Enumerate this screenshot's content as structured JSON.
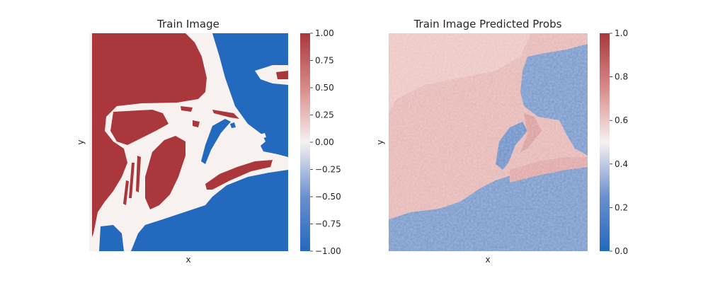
{
  "chart_data": [
    {
      "type": "heatmap",
      "title": "Train Image",
      "xlabel": "x",
      "ylabel": "y",
      "colorbar": {
        "range": [
          -1.0,
          1.0
        ],
        "colormap": "vlag",
        "ticks": [
          "1.00",
          "0.75",
          "0.50",
          "0.25",
          "0.00",
          "−0.25",
          "−0.50",
          "−0.75",
          "−1.00"
        ],
        "tick_values": [
          1.0,
          0.75,
          0.5,
          0.25,
          0.0,
          -0.25,
          -0.5,
          -0.75,
          -1.0
        ]
      },
      "values_present": [
        -1.0,
        0.0,
        1.0
      ]
    },
    {
      "type": "heatmap",
      "title": "Train Image Predicted Probs",
      "xlabel": "x",
      "ylabel": "y",
      "colorbar": {
        "range": [
          0.0,
          1.0
        ],
        "colormap": "vlag",
        "ticks": [
          "1.0",
          "0.8",
          "0.6",
          "0.4",
          "0.2",
          "0.0"
        ],
        "tick_values": [
          1.0,
          0.8,
          0.6,
          0.4,
          0.2,
          0.0
        ]
      }
    }
  ],
  "colors": {
    "red": "#a9373b",
    "white": "#f7f1f0",
    "blue": "#2369bd",
    "pink": "#e6b8b6",
    "light_blue": "#7a9acc"
  }
}
